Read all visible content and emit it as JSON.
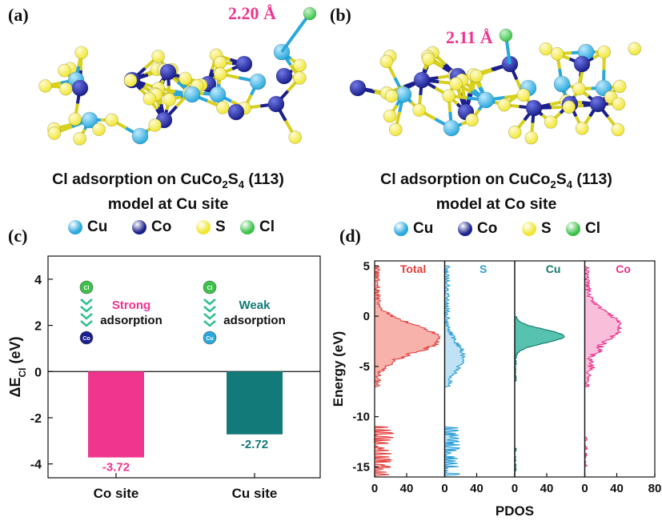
{
  "panels": {
    "a": {
      "label": "(a)",
      "bond_length": "2.20 Å",
      "caption_line1_prefix": "Cl adsorption on CuCo",
      "caption_sub1": "2",
      "caption_mid": "S",
      "caption_sub2": "4",
      "caption_suffix": " (113)",
      "caption_line2": "model at Cu site"
    },
    "b": {
      "label": "(b)",
      "bond_length": "2.11 Å",
      "caption_line1_prefix": "Cl adsorption on CuCo",
      "caption_sub1": "2",
      "caption_mid": "S",
      "caption_sub2": "4",
      "caption_suffix": " (113)",
      "caption_line2": "model at Co site"
    },
    "c": {
      "label": "(c)"
    },
    "d": {
      "label": "(d)"
    }
  },
  "legend": {
    "items": [
      {
        "name": "Cu",
        "color": "#29a8dc"
      },
      {
        "name": "Co",
        "color": "#1a1f8c"
      },
      {
        "name": "S",
        "color": "#f0e632"
      },
      {
        "name": "Cl",
        "color": "#3cc24a"
      }
    ]
  },
  "colors": {
    "pink": "#f0358f",
    "teal": "#127a78",
    "cu_blue": "#29a8dc",
    "co_navy": "#1a1f8c",
    "s_yellow": "#f0e632",
    "cl_green": "#3cc24a",
    "s_bond": "#d8d01e",
    "pdos_total": "#e53c3c",
    "pdos_s": "#2a9ed8",
    "pdos_cu": "#127a6e",
    "pdos_co": "#ee2f8a"
  },
  "chart_data": [
    {
      "type": "bar",
      "panel": "c",
      "categories": [
        "Co site",
        "Cu site"
      ],
      "values": [
        -3.72,
        -2.72
      ],
      "value_labels": [
        "-3.72",
        "-2.72"
      ],
      "ylabel": "ΔE",
      "ylabel_sub": "Cl",
      "ylabel_unit": " (eV)",
      "ylim": [
        -4.6,
        5
      ],
      "yticks": [
        -4,
        -2,
        0,
        2,
        4
      ],
      "ytick_labels": [
        "-4",
        "-2",
        "0",
        "2",
        "4"
      ],
      "annotations": [
        {
          "top_atom": "Cl",
          "bottom_atom": "Co",
          "word1": "Strong",
          "word2": "adsorption"
        },
        {
          "top_atom": "Cl",
          "bottom_atom": "Cu",
          "word1": "Weak",
          "word2": "adsorption"
        }
      ]
    },
    {
      "type": "area",
      "panel": "d",
      "xlabel": "PDOS",
      "ylabel": "Energy (eV)",
      "ylim": [
        -16,
        5.5
      ],
      "yticks": [
        5,
        0,
        -5,
        -10,
        -15
      ],
      "ytick_labels": [
        "5",
        "0",
        "-5",
        "-10",
        "-15"
      ],
      "xtick_labels": [
        "0",
        "40",
        "0",
        "40",
        "0",
        "40",
        "0",
        "40",
        "80"
      ],
      "series": [
        {
          "name": "Total",
          "peak_energy": -2.2,
          "peak_value": 70,
          "valence_band": [
            -7,
            5
          ],
          "deep_band": [
            -16,
            -11
          ],
          "deep_max": 22
        },
        {
          "name": "S",
          "peak_energy": -4.0,
          "peak_value": 18,
          "valence_band": [
            -7,
            5
          ],
          "deep_band": [
            -16,
            -11
          ],
          "deep_max": 18
        },
        {
          "name": "Cu",
          "peak_energy": -2.0,
          "peak_value": 55,
          "valence_band": [
            -6.5,
            0
          ],
          "deep_band": [
            -15.5,
            -13
          ],
          "deep_max": 2
        },
        {
          "name": "Co",
          "peak_energy": -1.0,
          "peak_value": 38,
          "valence_band": [
            -7,
            5
          ],
          "deep_band": [
            -15,
            -12
          ],
          "deep_max": 3
        }
      ]
    }
  ]
}
